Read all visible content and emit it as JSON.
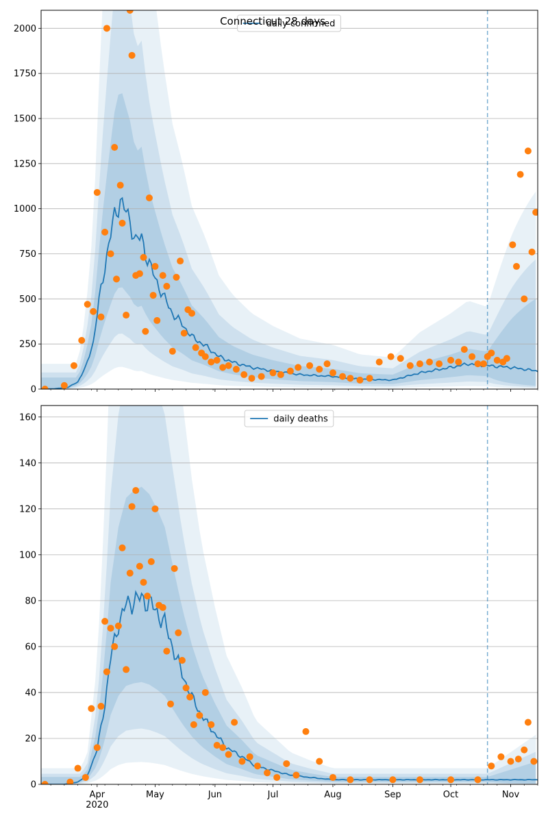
{
  "chart_data": [
    {
      "type": "line",
      "title": "Connecticut 28 days",
      "legend": "daily confirmed",
      "legend_placement": "upper-center",
      "grid": "horizontal",
      "x_axis": {
        "type": "date",
        "start": "2020-03-03",
        "end": "2020-11-15",
        "show_tick_labels": false
      },
      "ylim": [
        0,
        2100
      ],
      "yticks": [
        "0",
        "250",
        "500",
        "750",
        "1000",
        "1250",
        "1500",
        "1750",
        "2000"
      ],
      "vline_date": "2020-10-20",
      "colors": {
        "line": "#1f77b4",
        "points": "#ff7f0e",
        "band": "#1f77b4"
      },
      "series": [
        {
          "kind": "model-median",
          "x": [
            "2020-03-03",
            "2020-03-10",
            "2020-03-17",
            "2020-03-22",
            "2020-03-26",
            "2020-03-30",
            "2020-04-03",
            "2020-04-07",
            "2020-04-10",
            "2020-04-13",
            "2020-04-15",
            "2020-04-18",
            "2020-04-21",
            "2020-04-24",
            "2020-04-27",
            "2020-04-30",
            "2020-05-05",
            "2020-05-10",
            "2020-05-15",
            "2020-05-20",
            "2020-05-27",
            "2020-06-03",
            "2020-06-10",
            "2020-06-20",
            "2020-07-01",
            "2020-07-15",
            "2020-08-01",
            "2020-08-15",
            "2020-09-01",
            "2020-09-15",
            "2020-10-01",
            "2020-10-10",
            "2020-10-20",
            "2020-11-01",
            "2020-11-15"
          ],
          "y": [
            0,
            2,
            10,
            40,
            120,
            260,
            560,
            800,
            960,
            1050,
            1000,
            930,
            820,
            840,
            720,
            640,
            520,
            420,
            360,
            290,
            240,
            180,
            150,
            120,
            100,
            80,
            70,
            55,
            50,
            90,
            120,
            140,
            130,
            120,
            100
          ]
        },
        {
          "kind": "observed",
          "x": [
            "2020-03-05",
            "2020-03-15",
            "2020-03-20",
            "2020-03-24",
            "2020-03-27",
            "2020-03-30",
            "2020-04-01",
            "2020-04-03",
            "2020-04-05",
            "2020-04-06",
            "2020-04-08",
            "2020-04-10",
            "2020-04-11",
            "2020-04-13",
            "2020-04-14",
            "2020-04-16",
            "2020-04-18",
            "2020-04-19",
            "2020-04-21",
            "2020-04-23",
            "2020-04-25",
            "2020-04-26",
            "2020-04-28",
            "2020-04-30",
            "2020-05-01",
            "2020-05-02",
            "2020-05-05",
            "2020-05-07",
            "2020-05-10",
            "2020-05-12",
            "2020-05-14",
            "2020-05-16",
            "2020-05-18",
            "2020-05-20",
            "2020-05-22",
            "2020-05-25",
            "2020-05-27",
            "2020-05-30",
            "2020-06-02",
            "2020-06-05",
            "2020-06-08",
            "2020-06-12",
            "2020-06-16",
            "2020-06-20",
            "2020-06-25",
            "2020-07-01",
            "2020-07-05",
            "2020-07-10",
            "2020-07-14",
            "2020-07-20",
            "2020-07-25",
            "2020-07-29",
            "2020-08-01",
            "2020-08-06",
            "2020-08-10",
            "2020-08-15",
            "2020-08-20",
            "2020-08-25",
            "2020-08-31",
            "2020-09-05",
            "2020-09-10",
            "2020-09-15",
            "2020-09-20",
            "2020-09-25",
            "2020-10-01",
            "2020-10-05",
            "2020-10-08",
            "2020-10-12",
            "2020-10-15",
            "2020-10-18",
            "2020-10-20",
            "2020-10-22",
            "2020-10-25",
            "2020-10-28",
            "2020-10-30",
            "2020-11-02",
            "2020-11-04",
            "2020-11-06",
            "2020-11-08",
            "2020-11-10",
            "2020-11-12",
            "2020-11-14"
          ],
          "y": [
            0,
            20,
            130,
            270,
            470,
            430,
            1090,
            400,
            870,
            2000,
            750,
            1340,
            610,
            1130,
            920,
            410,
            2100,
            1850,
            630,
            640,
            730,
            320,
            1060,
            520,
            680,
            380,
            630,
            570,
            210,
            620,
            710,
            310,
            440,
            420,
            230,
            200,
            180,
            150,
            160,
            120,
            130,
            110,
            80,
            60,
            70,
            90,
            80,
            100,
            120,
            130,
            110,
            140,
            90,
            70,
            60,
            50,
            60,
            150,
            180,
            170,
            130,
            140,
            150,
            140,
            160,
            150,
            220,
            180,
            140,
            140,
            180,
            200,
            160,
            150,
            170,
            800,
            680,
            1190,
            500,
            1320,
            760,
            980
          ]
        }
      ]
    },
    {
      "type": "line",
      "legend": "daily deaths",
      "legend_placement": "upper-center",
      "grid": "horizontal",
      "x_axis": {
        "type": "date",
        "start": "2020-03-03",
        "end": "2020-11-15"
      },
      "xtick_labels": [
        "Apr\n2020",
        "May",
        "Jun",
        "Jul",
        "Aug",
        "Sep",
        "Oct",
        "Nov"
      ],
      "xtick_dates": [
        "2020-04-01",
        "2020-05-01",
        "2020-06-01",
        "2020-07-01",
        "2020-08-01",
        "2020-09-01",
        "2020-10-01",
        "2020-11-01"
      ],
      "ylim": [
        0,
        165
      ],
      "yticks": [
        "0",
        "20",
        "40",
        "60",
        "80",
        "100",
        "120",
        "140",
        "160"
      ],
      "vline_date": "2020-10-20",
      "colors": {
        "line": "#1f77b4",
        "points": "#ff7f0e",
        "band": "#1f77b4"
      },
      "series": [
        {
          "kind": "model-median",
          "x": [
            "2020-03-03",
            "2020-03-15",
            "2020-03-22",
            "2020-03-27",
            "2020-04-01",
            "2020-04-05",
            "2020-04-08",
            "2020-04-12",
            "2020-04-16",
            "2020-04-20",
            "2020-04-24",
            "2020-04-28",
            "2020-05-02",
            "2020-05-06",
            "2020-05-10",
            "2020-05-15",
            "2020-05-20",
            "2020-05-25",
            "2020-06-01",
            "2020-06-07",
            "2020-06-15",
            "2020-06-22",
            "2020-07-01",
            "2020-07-10",
            "2020-07-20",
            "2020-08-01",
            "2020-08-15",
            "2020-09-01",
            "2020-09-15",
            "2020-10-01",
            "2020-10-15",
            "2020-10-25",
            "2020-11-05",
            "2020-11-15"
          ],
          "y": [
            0,
            0,
            1,
            4,
            15,
            35,
            55,
            70,
            78,
            80,
            81,
            79,
            75,
            70,
            60,
            48,
            38,
            30,
            22,
            16,
            12,
            8,
            6,
            4,
            3,
            2,
            2,
            2,
            2,
            2,
            2,
            2,
            2,
            2
          ]
        },
        {
          "kind": "observed",
          "x": [
            "2020-03-05",
            "2020-03-18",
            "2020-03-22",
            "2020-03-26",
            "2020-03-29",
            "2020-04-01",
            "2020-04-03",
            "2020-04-05",
            "2020-04-06",
            "2020-04-08",
            "2020-04-10",
            "2020-04-12",
            "2020-04-14",
            "2020-04-16",
            "2020-04-18",
            "2020-04-19",
            "2020-04-21",
            "2020-04-23",
            "2020-04-25",
            "2020-04-27",
            "2020-04-29",
            "2020-05-01",
            "2020-05-03",
            "2020-05-05",
            "2020-05-07",
            "2020-05-09",
            "2020-05-11",
            "2020-05-13",
            "2020-05-15",
            "2020-05-17",
            "2020-05-19",
            "2020-05-21",
            "2020-05-24",
            "2020-05-27",
            "2020-05-30",
            "2020-06-02",
            "2020-06-05",
            "2020-06-08",
            "2020-06-11",
            "2020-06-15",
            "2020-06-19",
            "2020-06-23",
            "2020-06-28",
            "2020-07-03",
            "2020-07-08",
            "2020-07-13",
            "2020-07-18",
            "2020-07-25",
            "2020-08-01",
            "2020-08-10",
            "2020-08-20",
            "2020-09-01",
            "2020-09-15",
            "2020-10-01",
            "2020-10-15",
            "2020-10-22",
            "2020-10-27",
            "2020-11-01",
            "2020-11-05",
            "2020-11-08",
            "2020-11-10",
            "2020-11-13"
          ],
          "y": [
            0,
            1,
            7,
            3,
            33,
            16,
            34,
            71,
            49,
            68,
            60,
            69,
            103,
            50,
            92,
            121,
            128,
            95,
            88,
            82,
            97,
            120,
            78,
            77,
            58,
            35,
            94,
            66,
            54,
            42,
            38,
            26,
            30,
            40,
            26,
            17,
            16,
            13,
            27,
            10,
            12,
            8,
            5,
            3,
            9,
            4,
            23,
            10,
            3,
            2,
            2,
            2,
            2,
            2,
            2,
            8,
            12,
            10,
            11,
            15,
            27,
            10
          ]
        }
      ]
    }
  ]
}
